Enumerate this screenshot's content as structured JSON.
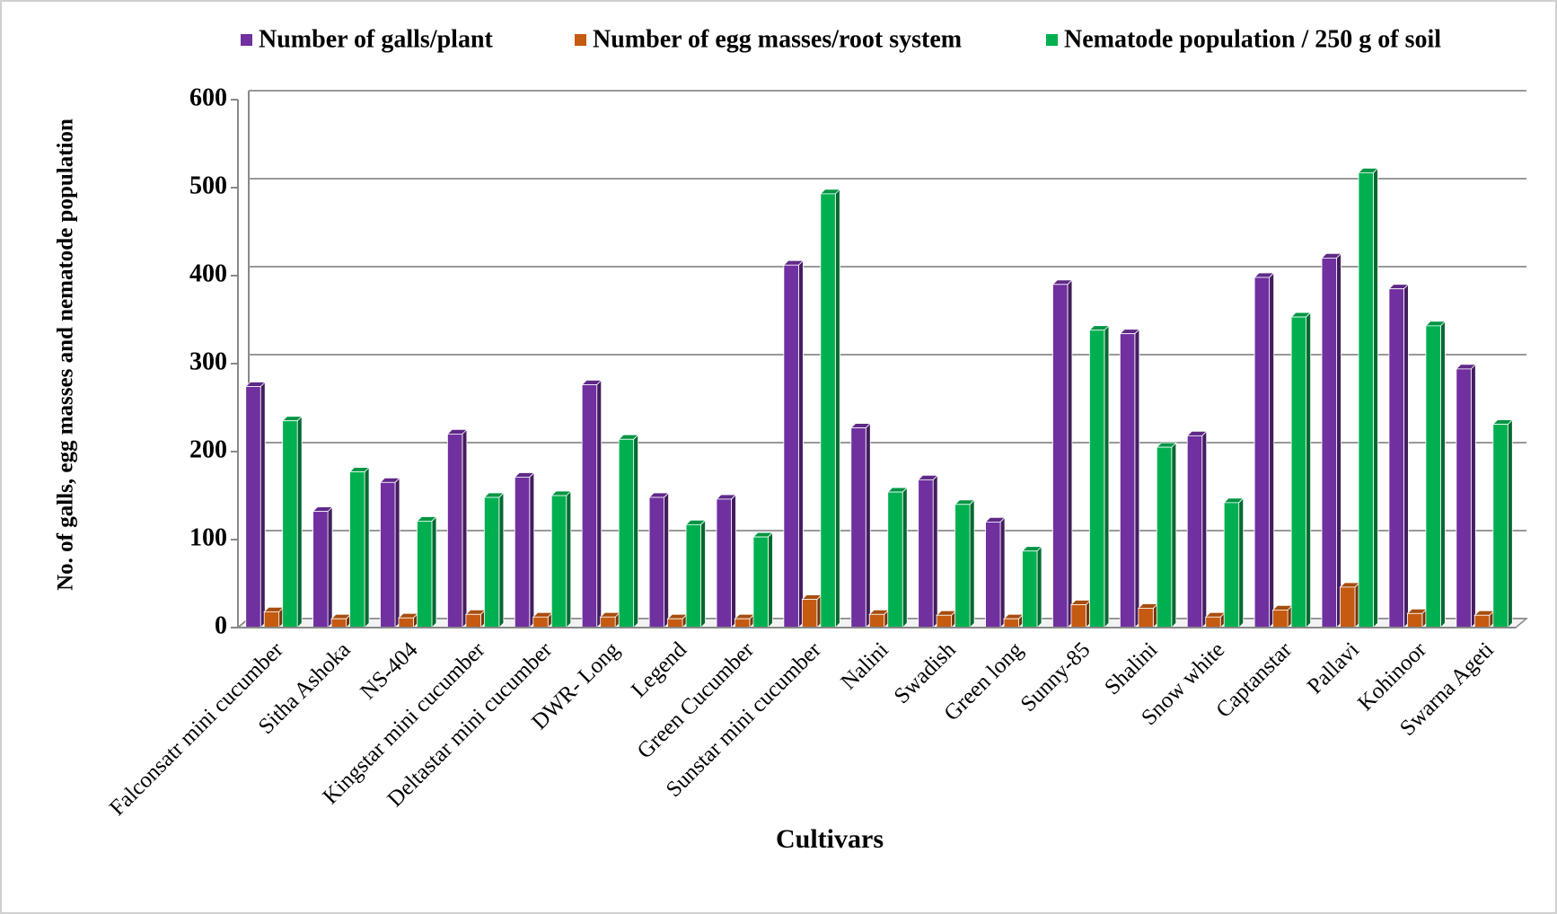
{
  "chart_data": {
    "type": "bar",
    "x_label": "Cultivars",
    "y_label": "No. of galls, egg masses and nematode population",
    "categories": [
      "Falconsatr mini cucumber",
      "Sitha Ashoka",
      "NS-404",
      "Kingstar mini cucumber",
      "Deltastar mini cucumber",
      "DWR- Long",
      "Legend",
      "Green Cucumber",
      "Sunstar mini cucumber",
      "Nalini",
      "Swadish",
      "Green long",
      "Sunny-85",
      "Shalini",
      "Snow white",
      "Captanstar",
      "Pallavi",
      "Kohinoor",
      "Swarna Ageti"
    ],
    "series": [
      {
        "name": "Number of galls/plant",
        "color": "#7030a0",
        "values": [
          274,
          132,
          165,
          220,
          171,
          276,
          148,
          146,
          412,
          227,
          168,
          120,
          390,
          334,
          218,
          398,
          420,
          385,
          294
        ]
      },
      {
        "name": "Number of egg masses/root system",
        "color": "#c55a11",
        "values": [
          18,
          10,
          11,
          15,
          12,
          12,
          10,
          10,
          32,
          15,
          14,
          10,
          26,
          22,
          12,
          20,
          46,
          16,
          14
        ]
      },
      {
        "name": "Nematode population / 250 g of soil",
        "color": "#00b050",
        "values": [
          235,
          177,
          121,
          148,
          150,
          214,
          117,
          103,
          493,
          154,
          140,
          87,
          338,
          205,
          142,
          353,
          517,
          343,
          231
        ]
      }
    ],
    "ylim": [
      0,
      600
    ],
    "yticks": [
      0,
      100,
      200,
      300,
      400,
      500,
      600
    ],
    "grid": true,
    "legend": "top"
  }
}
